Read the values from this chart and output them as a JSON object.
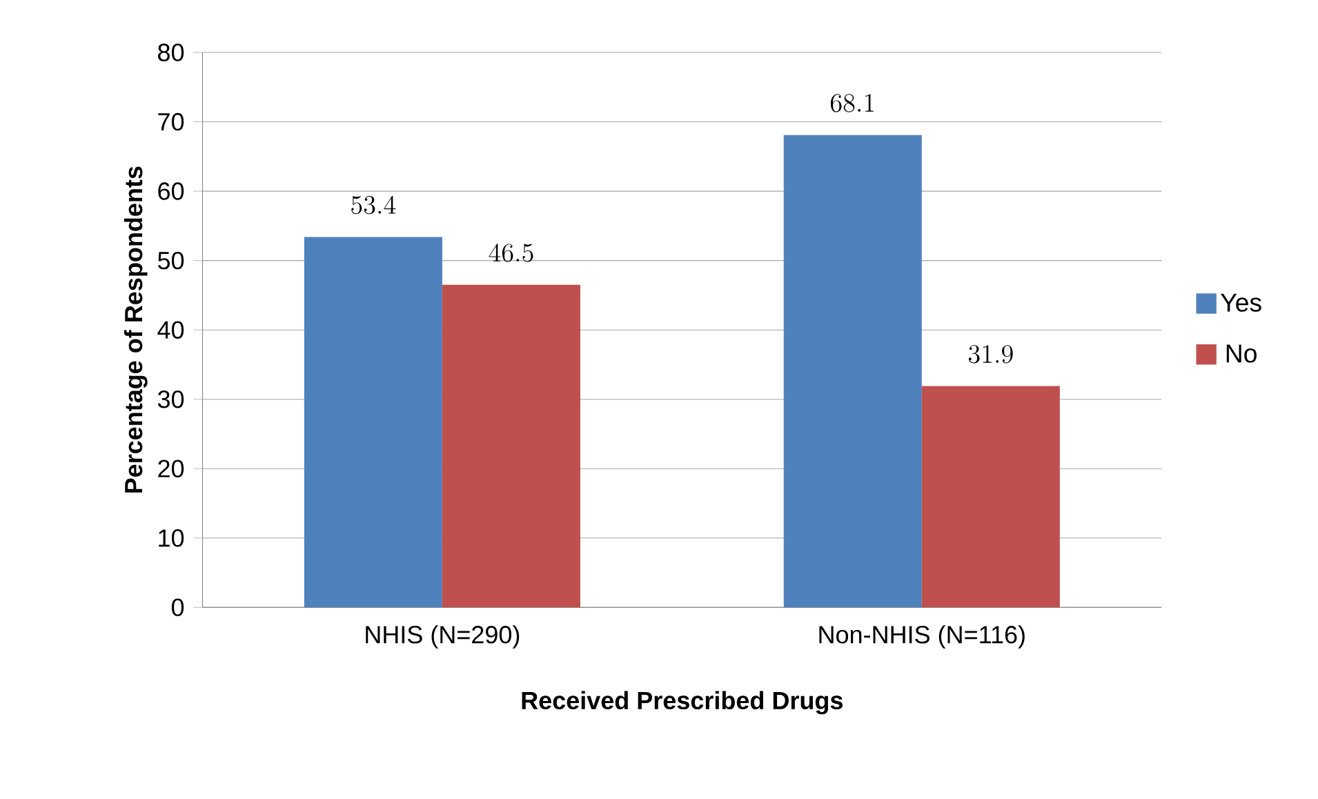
{
  "chart_data": {
    "type": "bar",
    "xlabel": "Received Prescribed Drugs",
    "ylabel": "Percentage of Respondents",
    "categories": [
      "NHIS (N=290)",
      "Non-NHIS (N=116)"
    ],
    "series": [
      {
        "name": "Yes",
        "color": "#4f81bd",
        "values": [
          53.4,
          68.1
        ]
      },
      {
        "name": "No",
        "color": "#c0504d",
        "values": [
          46.5,
          31.9
        ]
      }
    ],
    "ylim": [
      0,
      80
    ],
    "yticks": [
      0,
      10,
      20,
      30,
      40,
      50,
      60,
      70,
      80
    ],
    "grid": "y",
    "legend": "right",
    "data_labels": true
  }
}
